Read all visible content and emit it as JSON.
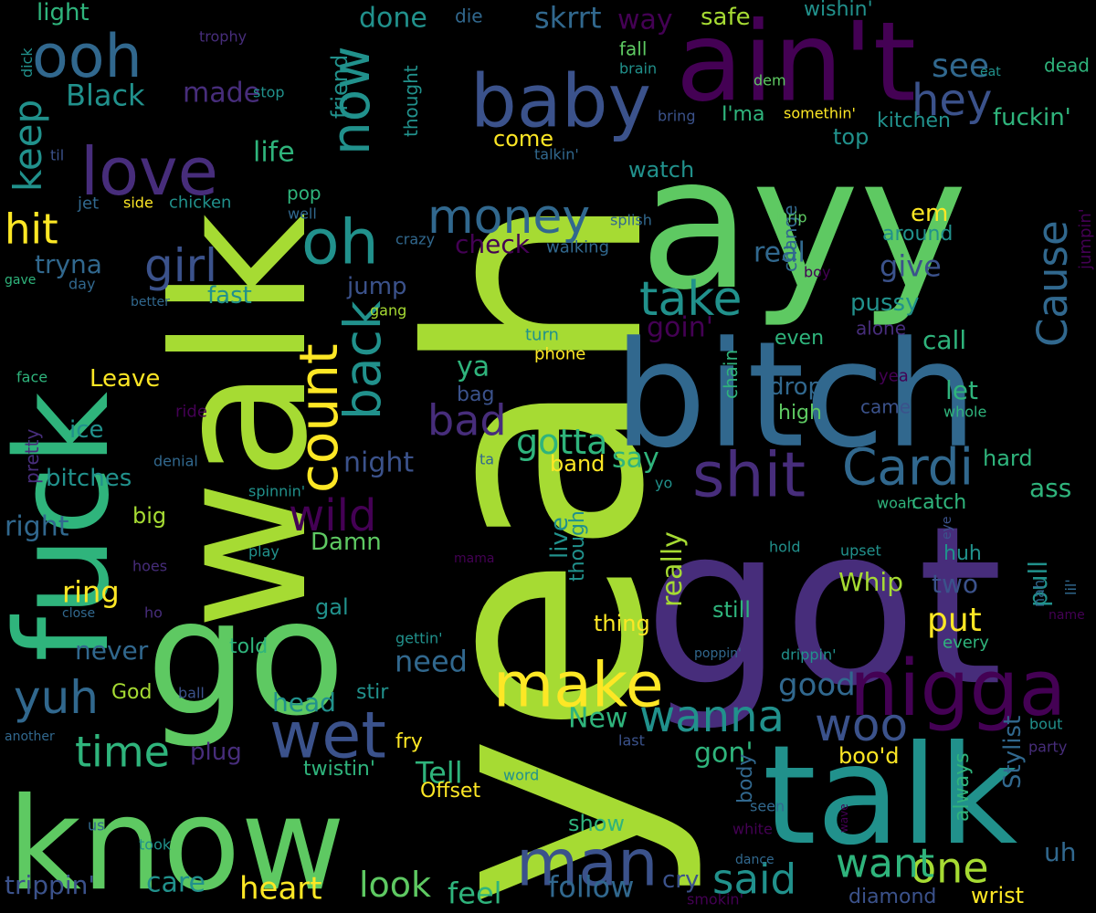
{
  "palette": {
    "lime": "#a6db33",
    "green": "#5ec962",
    "teal": "#21918c",
    "mint": "#2fb47c",
    "blue": "#3b528b",
    "purple": "#440154",
    "violet": "#472d7b",
    "yellow": "#fde725",
    "slate": "#31688e"
  },
  "words": [
    {
      "text": "yeah",
      "color": "#a6db33"
    },
    {
      "text": "ayy",
      "color": "#5ec962"
    },
    {
      "text": "walk",
      "color": "#a6db33"
    },
    {
      "text": "got",
      "color": "#472d7b"
    },
    {
      "text": "talk",
      "color": "#21918c"
    },
    {
      "text": "bitch",
      "color": "#31688e"
    },
    {
      "text": "ain't",
      "color": "#440154"
    },
    {
      "text": "know",
      "color": "#5ec962"
    },
    {
      "text": "go",
      "color": "#5ec962"
    },
    {
      "text": "fuck",
      "color": "#2fb47c"
    },
    {
      "text": "baby",
      "color": "#3b528b"
    },
    {
      "text": "nigga",
      "color": "#440154"
    },
    {
      "text": "make",
      "color": "#fde725"
    },
    {
      "text": "love",
      "color": "#472d7b"
    },
    {
      "text": "ooh",
      "color": "#31688e"
    },
    {
      "text": "man",
      "color": "#3b528b"
    },
    {
      "text": "now",
      "color": "#21918c"
    },
    {
      "text": "oh",
      "color": "#21918c"
    },
    {
      "text": "shit",
      "color": "#472d7b"
    },
    {
      "text": "Cardi",
      "color": "#31688e"
    },
    {
      "text": "count",
      "color": "#fde725"
    },
    {
      "text": "wet",
      "color": "#3b528b"
    },
    {
      "text": "wild",
      "color": "#440154"
    },
    {
      "text": "money",
      "color": "#31688e"
    },
    {
      "text": "girl",
      "color": "#3b528b"
    },
    {
      "text": "hey",
      "color": "#3b528b"
    },
    {
      "text": "take",
      "color": "#21918c"
    },
    {
      "text": "back",
      "color": "#21918c"
    },
    {
      "text": "Cause",
      "color": "#31688e"
    },
    {
      "text": "woo",
      "color": "#3b528b"
    },
    {
      "text": "wanna",
      "color": "#21918c"
    },
    {
      "text": "one",
      "color": "#a6db33"
    },
    {
      "text": "want",
      "color": "#2fb47c"
    },
    {
      "text": "said",
      "color": "#21918c"
    },
    {
      "text": "yuh",
      "color": "#31688e"
    },
    {
      "text": "time",
      "color": "#2fb47c"
    },
    {
      "text": "keep",
      "color": "#21918c"
    },
    {
      "text": "hit",
      "color": "#fde725"
    },
    {
      "text": "bad",
      "color": "#472d7b"
    },
    {
      "text": "gotta",
      "color": "#2fb47c"
    },
    {
      "text": "see",
      "color": "#31688e"
    },
    {
      "text": "heart",
      "color": "#fde725"
    },
    {
      "text": "look",
      "color": "#5ec962"
    },
    {
      "text": "care",
      "color": "#21918c"
    },
    {
      "text": "trippin'",
      "color": "#3b528b"
    },
    {
      "text": "follow",
      "color": "#31688e"
    },
    {
      "text": "feel",
      "color": "#2fb47c"
    },
    {
      "text": "New",
      "color": "#2fb47c"
    },
    {
      "text": "good",
      "color": "#31688e"
    },
    {
      "text": "gon'",
      "color": "#2fb47c"
    },
    {
      "text": "need",
      "color": "#31688e"
    },
    {
      "text": "put",
      "color": "#fde725"
    },
    {
      "text": "Tell",
      "color": "#2fb47c"
    },
    {
      "text": "Black",
      "color": "#21918c"
    },
    {
      "text": "skrrt",
      "color": "#31688e"
    },
    {
      "text": "way",
      "color": "#440154"
    },
    {
      "text": "done",
      "color": "#21918c"
    },
    {
      "text": "ooh-light",
      "color": "#2fb47c",
      "display": "light"
    },
    {
      "text": "made",
      "color": "#472d7b"
    },
    {
      "text": "safe",
      "color": "#a6db33"
    },
    {
      "text": "wishin'",
      "color": "#21918c"
    },
    {
      "text": "fuckin'",
      "color": "#2fb47c"
    },
    {
      "text": "dead",
      "color": "#2fb47c"
    },
    {
      "text": "kitchen",
      "color": "#21918c"
    },
    {
      "text": "I'ma",
      "color": "#2fb47c"
    },
    {
      "text": "life",
      "color": "#2fb47c"
    },
    {
      "text": "friend",
      "color": "#21918c"
    },
    {
      "text": "come",
      "color": "#fde725"
    },
    {
      "text": "top",
      "color": "#21918c"
    },
    {
      "text": "watch",
      "color": "#21918c"
    },
    {
      "text": "check",
      "color": "#440154"
    },
    {
      "text": "em",
      "color": "#fde725"
    },
    {
      "text": "give",
      "color": "#3b528b"
    },
    {
      "text": "real",
      "color": "#31688e"
    },
    {
      "text": "tryna",
      "color": "#31688e"
    },
    {
      "text": "fast",
      "color": "#21918c"
    },
    {
      "text": "jump",
      "color": "#3b528b"
    },
    {
      "text": "pussy",
      "color": "#21918c"
    },
    {
      "text": "call",
      "color": "#2fb47c"
    },
    {
      "text": "goin'",
      "color": "#440154"
    },
    {
      "text": "Leave",
      "color": "#fde725"
    },
    {
      "text": "ice",
      "color": "#21918c"
    },
    {
      "text": "ya",
      "color": "#2fb47c"
    },
    {
      "text": "drop",
      "color": "#31688e"
    },
    {
      "text": "let",
      "color": "#2fb47c"
    },
    {
      "text": "even",
      "color": "#2fb47c"
    },
    {
      "text": "night",
      "color": "#3b528b"
    },
    {
      "text": "say",
      "color": "#2fb47c"
    },
    {
      "text": "band",
      "color": "#fde725"
    },
    {
      "text": "bag",
      "color": "#3b528b"
    },
    {
      "text": "hard",
      "color": "#2fb47c"
    },
    {
      "text": "ass",
      "color": "#2fb47c"
    },
    {
      "text": "bitches",
      "color": "#21918c"
    },
    {
      "text": "big",
      "color": "#a6db33"
    },
    {
      "text": "right",
      "color": "#31688e"
    },
    {
      "text": "Damn",
      "color": "#5ec962"
    },
    {
      "text": "ring",
      "color": "#fde725"
    },
    {
      "text": "Whip",
      "color": "#a6db33"
    },
    {
      "text": "two",
      "color": "#3b528b"
    },
    {
      "text": "huh",
      "color": "#21918c"
    },
    {
      "text": "pull",
      "color": "#21918c"
    },
    {
      "text": "catch",
      "color": "#2fb47c"
    },
    {
      "text": "thing",
      "color": "#fde725"
    },
    {
      "text": "still",
      "color": "#2fb47c"
    },
    {
      "text": "never",
      "color": "#31688e"
    },
    {
      "text": "gal",
      "color": "#21918c"
    },
    {
      "text": "told",
      "color": "#2fb47c"
    },
    {
      "text": "head",
      "color": "#21918c"
    },
    {
      "text": "stir",
      "color": "#21918c"
    },
    {
      "text": "God",
      "color": "#a6db33"
    },
    {
      "text": "plug",
      "color": "#472d7b"
    },
    {
      "text": "fry",
      "color": "#fde725"
    },
    {
      "text": "boo'd",
      "color": "#fde725"
    },
    {
      "text": "twistin'",
      "color": "#2fb47c"
    },
    {
      "text": "Offset",
      "color": "#fde725"
    },
    {
      "text": "show",
      "color": "#2fb47c"
    },
    {
      "text": "cry",
      "color": "#3b528b"
    },
    {
      "text": "wrist",
      "color": "#fde725"
    },
    {
      "text": "uh",
      "color": "#31688e"
    },
    {
      "text": "diamond",
      "color": "#3b528b"
    },
    {
      "text": "really",
      "color": "#a6db33"
    },
    {
      "text": "live",
      "color": "#21918c"
    },
    {
      "text": "though",
      "color": "#21918c"
    },
    {
      "text": "body",
      "color": "#31688e"
    },
    {
      "text": "Stylist",
      "color": "#31688e"
    },
    {
      "text": "always",
      "color": "#2fb47c"
    },
    {
      "text": "chain",
      "color": "#2fb47c"
    },
    {
      "text": "high",
      "color": "#5ec962"
    },
    {
      "text": "change",
      "color": "#31688e"
    },
    {
      "text": "around",
      "color": "#21918c"
    },
    {
      "text": "alone",
      "color": "#472d7b"
    },
    {
      "text": "came",
      "color": "#3b528b"
    },
    {
      "text": "whole",
      "color": "#2fb47c"
    },
    {
      "text": "yea",
      "color": "#440154"
    },
    {
      "text": "pretty",
      "color": "#472d7b"
    },
    {
      "text": "face",
      "color": "#2fb47c"
    },
    {
      "text": "ride",
      "color": "#440154"
    },
    {
      "text": "denial",
      "color": "#31688e"
    },
    {
      "text": "spinnin'",
      "color": "#21918c"
    },
    {
      "text": "play",
      "color": "#21918c"
    },
    {
      "text": "hoes",
      "color": "#472d7b"
    },
    {
      "text": "ho",
      "color": "#472d7b"
    },
    {
      "text": "close",
      "color": "#31688e"
    },
    {
      "text": "ball",
      "color": "#3b528b"
    },
    {
      "text": "another",
      "color": "#31688e"
    },
    {
      "text": "us",
      "color": "#31688e"
    },
    {
      "text": "took",
      "color": "#21918c"
    },
    {
      "text": "word",
      "color": "#21918c"
    },
    {
      "text": "smokin'",
      "color": "#440154"
    },
    {
      "text": "seen",
      "color": "#31688e"
    },
    {
      "text": "white",
      "color": "#440154"
    },
    {
      "text": "dance",
      "color": "#31688e"
    },
    {
      "text": "last",
      "color": "#3b528b"
    },
    {
      "text": "wave",
      "color": "#440154"
    },
    {
      "text": "bout",
      "color": "#21918c"
    },
    {
      "text": "party",
      "color": "#472d7b"
    },
    {
      "text": "poppin'",
      "color": "#31688e"
    },
    {
      "text": "drippin'",
      "color": "#21918c"
    },
    {
      "text": "every",
      "color": "#2fb47c"
    },
    {
      "text": "gettin'",
      "color": "#21918c"
    },
    {
      "text": "mama",
      "color": "#440154"
    },
    {
      "text": "hold",
      "color": "#21918c"
    },
    {
      "text": "upset",
      "color": "#21918c"
    },
    {
      "text": "nah",
      "color": "#31688e"
    },
    {
      "text": "lil'",
      "color": "#31688e"
    },
    {
      "text": "name",
      "color": "#440154"
    },
    {
      "text": "eye",
      "color": "#3b528b"
    },
    {
      "text": "woah",
      "color": "#2fb47c"
    },
    {
      "text": "yo",
      "color": "#21918c"
    },
    {
      "text": "ta",
      "color": "#31688e"
    },
    {
      "text": "turn",
      "color": "#21918c"
    },
    {
      "text": "phone",
      "color": "#fde725"
    },
    {
      "text": "gang",
      "color": "#a6db33"
    },
    {
      "text": "better",
      "color": "#31688e"
    },
    {
      "text": "gave",
      "color": "#2fb47c"
    },
    {
      "text": "day",
      "color": "#31688e"
    },
    {
      "text": "crazy",
      "color": "#31688e"
    },
    {
      "text": "walking",
      "color": "#31688e"
    },
    {
      "text": "splish",
      "color": "#31688e"
    },
    {
      "text": "Drip",
      "color": "#5ec962"
    },
    {
      "text": "jumpin'",
      "color": "#440154"
    },
    {
      "text": "boy",
      "color": "#440154"
    },
    {
      "text": "pop",
      "color": "#2fb47c"
    },
    {
      "text": "well",
      "color": "#31688e"
    },
    {
      "text": "jet",
      "color": "#31688e"
    },
    {
      "text": "side",
      "color": "#fde725"
    },
    {
      "text": "chicken",
      "color": "#21918c"
    },
    {
      "text": "til",
      "color": "#3b528b"
    },
    {
      "text": "talkin'",
      "color": "#31688e"
    },
    {
      "text": "thought",
      "color": "#21918c"
    },
    {
      "text": "stop",
      "color": "#21918c"
    },
    {
      "text": "dick",
      "color": "#21918c"
    },
    {
      "text": "trophy",
      "color": "#472d7b"
    },
    {
      "text": "die",
      "color": "#31688e"
    },
    {
      "text": "fall",
      "color": "#5ec962"
    },
    {
      "text": "brain",
      "color": "#21918c"
    },
    {
      "text": "dem",
      "color": "#5ec962"
    },
    {
      "text": "bring",
      "color": "#3b528b"
    },
    {
      "text": "somethin'",
      "color": "#fde725"
    },
    {
      "text": "eat",
      "color": "#21918c"
    }
  ]
}
